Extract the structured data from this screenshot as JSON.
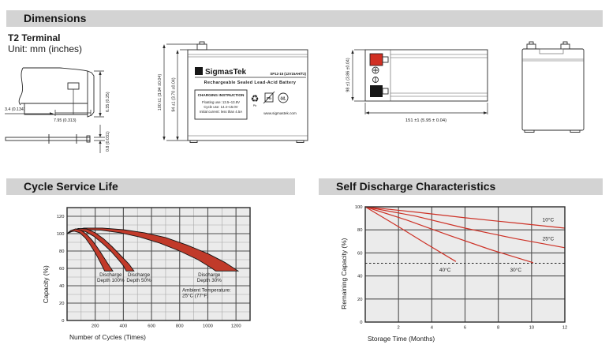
{
  "colors": {
    "header_bg": "#d3d3d3",
    "plot_bg": "#ebebeb",
    "grid_minor": "#a8a8a8",
    "grid_major": "#4f4f4f",
    "band_fill": "#c13a2a",
    "band_stroke": "#141414",
    "line_red": "#cd3126",
    "terminal_red": "#d12f23",
    "terminal_black": "#161616",
    "ink": "#1a1a1a"
  },
  "sections": {
    "dimensions": {
      "title": "Dimensions",
      "subtitle_line1": "T2 Terminal",
      "subtitle_line2": "Unit: mm (inches)"
    },
    "cycle": {
      "title": "Cycle Service Life"
    },
    "self_discharge": {
      "title": "Self Discharge Characteristics"
    }
  },
  "drawings": {
    "terminal_detail": {
      "dim_width_small": "3.4 (0.134)",
      "dim_width_large": "7.95 (0.313)",
      "dim_tab": "6.35 (0.25)",
      "dim_thickness": "0.8 (0.031)"
    },
    "front_view": {
      "dim_outer": "100 ±1 (3.94 ±0.04)",
      "dim_inner": "94 ±1 (3.70 ±0.04)",
      "label": {
        "logo_glyph": "Σ",
        "brand": "SigmasTek",
        "model": "SP12-15 (12V15AH/T2)",
        "subtitle": "Rechargeable Sealed Lead-Acid Battery",
        "charging_title": "CHARGING INSTRUCTION",
        "charging_lines": [
          "Floating use: 13.5~13.8V",
          "Cycle use: 14.4~15.0V",
          "Initial current: less than 4.5A"
        ],
        "recycle_pb": "Pb",
        "bin_pb": "Pb",
        "ul_mark": "UL",
        "website": "www.sigmastek.com"
      }
    },
    "top_view": {
      "dim_height": "98 ±1 (3.86 ±0.04)",
      "dim_width": "151 ±1 (5.95 ± 0.04)"
    }
  },
  "chart_data": [
    {
      "type": "area",
      "title": "Cycle Service Life",
      "xlabel": "Number of Cycles (Times)",
      "ylabel": "Capacity (%)",
      "xlim": [
        0,
        1300
      ],
      "ylim": [
        0,
        130
      ],
      "xticks": [
        200,
        400,
        600,
        800,
        1000,
        1200
      ],
      "yticks": [
        0,
        20,
        40,
        60,
        80,
        100,
        120
      ],
      "x_minor_step": 100,
      "y_minor_step": 10,
      "grid": true,
      "bands": [
        {
          "name": "Discharge Depth 30%",
          "upper": [
            [
              0,
              100
            ],
            [
              40,
              103.5
            ],
            [
              120,
              106.5
            ],
            [
              250,
              106.5
            ],
            [
              400,
              104.5
            ],
            [
              550,
              101
            ],
            [
              700,
              95.5
            ],
            [
              850,
              87
            ],
            [
              1000,
              77
            ],
            [
              1120,
              67
            ],
            [
              1215,
              57
            ]
          ],
          "lower": [
            [
              0,
              100
            ],
            [
              35,
              102.5
            ],
            [
              110,
              104.5
            ],
            [
              240,
              104
            ],
            [
              380,
              101
            ],
            [
              520,
              96
            ],
            [
              660,
              89
            ],
            [
              800,
              80
            ],
            [
              930,
              70
            ],
            [
              1030,
              60
            ],
            [
              1055,
              57
            ]
          ]
        },
        {
          "name": "Discharge Depth 50%",
          "upper": [
            [
              0,
              100
            ],
            [
              30,
              103.5
            ],
            [
              80,
              106
            ],
            [
              140,
              105.5
            ],
            [
              200,
              101
            ],
            [
              260,
              94
            ],
            [
              320,
              85
            ],
            [
              380,
              75
            ],
            [
              440,
              65
            ],
            [
              475,
              57
            ]
          ],
          "lower": [
            [
              0,
              100
            ],
            [
              25,
              102.5
            ],
            [
              70,
              104
            ],
            [
              130,
              102.5
            ],
            [
              190,
              97
            ],
            [
              250,
              89
            ],
            [
              310,
              80
            ],
            [
              360,
              71
            ],
            [
              400,
              63
            ],
            [
              420,
              57
            ]
          ]
        },
        {
          "name": "Discharge Depth 100%",
          "upper": [
            [
              0,
              100
            ],
            [
              25,
              103.5
            ],
            [
              60,
              105.5
            ],
            [
              100,
              104
            ],
            [
              140,
              99
            ],
            [
              180,
              92
            ],
            [
              220,
              83
            ],
            [
              260,
              73
            ],
            [
              300,
              63
            ],
            [
              325,
              57
            ]
          ],
          "lower": [
            [
              0,
              100
            ],
            [
              20,
              102
            ],
            [
              50,
              103
            ],
            [
              90,
              101
            ],
            [
              130,
              95
            ],
            [
              165,
              87
            ],
            [
              200,
              78
            ],
            [
              230,
              69
            ],
            [
              255,
              61
            ],
            [
              267,
              57
            ]
          ]
        }
      ],
      "annotations": [
        {
          "lines": [
            "Discharge",
            "Depth 100%"
          ],
          "x": 310,
          "y": 51,
          "anchor": "middle"
        },
        {
          "lines": [
            "Discharge",
            "Depth 50%"
          ],
          "x": 510,
          "y": 51,
          "anchor": "middle"
        },
        {
          "lines": [
            "Discharge",
            "Depth 30%"
          ],
          "x": 1010,
          "y": 51,
          "anchor": "middle"
        },
        {
          "lines": [
            "Ambient Temperature:",
            "25°C (77°F)"
          ],
          "x": 818,
          "y": 33,
          "anchor": "start"
        }
      ]
    },
    {
      "type": "line",
      "title": "Self Discharge Characteristics",
      "xlabel": "Storage Time (Months)",
      "ylabel": "Remaining Capacity (%)",
      "xlim": [
        0,
        12
      ],
      "ylim": [
        0,
        100
      ],
      "xticks": [
        2,
        4,
        6,
        8,
        10,
        12
      ],
      "yticks": [
        0,
        20,
        40,
        60,
        80,
        100
      ],
      "grid": true,
      "ref_line_y": 51,
      "series": [
        {
          "name": "10°C",
          "points": [
            [
              0,
              100
            ],
            [
              3,
              95.5
            ],
            [
              6,
              90.5
            ],
            [
              9,
              86
            ],
            [
              12,
              81.5
            ]
          ],
          "label_x": 11.0,
          "label_y": 87.5
        },
        {
          "name": "25°C",
          "points": [
            [
              0,
              100
            ],
            [
              3,
              92
            ],
            [
              6,
              81.5
            ],
            [
              9,
              72.5
            ],
            [
              12,
              64.5
            ]
          ],
          "label_x": 11.0,
          "label_y": 71
        },
        {
          "name": "30°C",
          "points": [
            [
              0,
              100
            ],
            [
              2.5,
              88.5
            ],
            [
              5,
              75.5
            ],
            [
              7.5,
              63
            ],
            [
              10.1,
              51.5
            ]
          ],
          "label_x": 9.05,
          "label_y": 44
        },
        {
          "name": "40°C",
          "points": [
            [
              0,
              100
            ],
            [
              1.8,
              84.5
            ],
            [
              3.6,
              68.5
            ],
            [
              5.45,
              52.5
            ]
          ],
          "label_x": 4.8,
          "label_y": 44
        }
      ]
    }
  ]
}
